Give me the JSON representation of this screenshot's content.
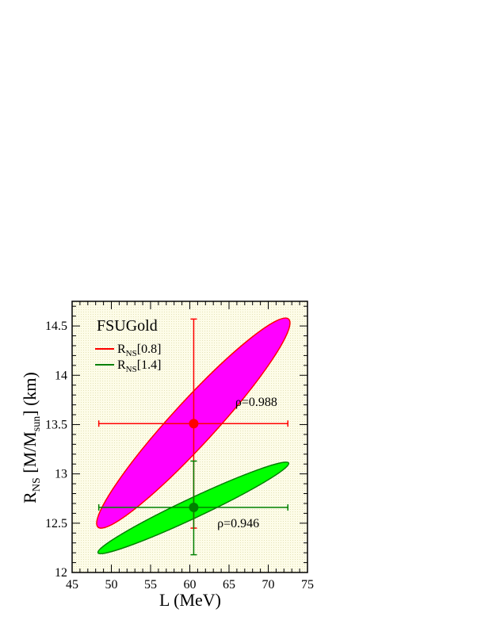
{
  "chart_data": {
    "type": "scatter",
    "title": "FSUGold",
    "xlabel": "L (MeV)",
    "ylabel": {
      "main": "R",
      "sub": "NS",
      "rest": " [M/M",
      "sub2": "sun",
      "end": "] (km)"
    },
    "xlim": [
      45,
      75
    ],
    "ylim": [
      12,
      14.75
    ],
    "xticks": [
      45,
      50,
      55,
      60,
      65,
      70,
      75
    ],
    "yticks": [
      12,
      12.5,
      13,
      13.5,
      14,
      14.5
    ],
    "xtick_labels": [
      "45",
      "50",
      "55",
      "60",
      "65",
      "70",
      "75"
    ],
    "ytick_labels": [
      "12",
      "12.5",
      "13",
      "13.5",
      "14",
      "14.5"
    ],
    "grid": false,
    "legend_placement": "top-left",
    "series": [
      {
        "legend_main": "R",
        "legend_sub": "NS",
        "legend_rest": "[0.8]",
        "color": "#ff0000",
        "fill": "#ff00ff",
        "point": {
          "x": 60.5,
          "y": 13.51
        },
        "x_error": [
          48.4,
          72.5
        ],
        "y_error": [
          12.45,
          14.57
        ],
        "ellipse_ends": [
          {
            "x": 48.3,
            "y": 12.46
          },
          {
            "x": 72.6,
            "y": 14.57
          }
        ],
        "ellipse_half_width": 0.22,
        "correlation_label": "ρ=0.988",
        "label_pos": {
          "x": 65.8,
          "y": 13.69
        }
      },
      {
        "legend_main": "R",
        "legend_sub": "NS",
        "legend_rest": "[1.4]",
        "color": "#008000",
        "fill": "#00ff00",
        "point": {
          "x": 60.5,
          "y": 12.66
        },
        "x_error": [
          48.4,
          72.5
        ],
        "y_error": [
          12.18,
          13.13
        ],
        "ellipse_ends": [
          {
            "x": 48.3,
            "y": 12.2
          },
          {
            "x": 72.6,
            "y": 13.11
          }
        ],
        "ellipse_half_width": 0.1,
        "correlation_label": "ρ=0.946",
        "label_pos": {
          "x": 63.5,
          "y": 12.46
        }
      }
    ]
  },
  "colors": {
    "background": "#ffffff",
    "plot_background": "#fdfce8",
    "plot_dots": "#e4e2b8",
    "axis": "#000000"
  }
}
